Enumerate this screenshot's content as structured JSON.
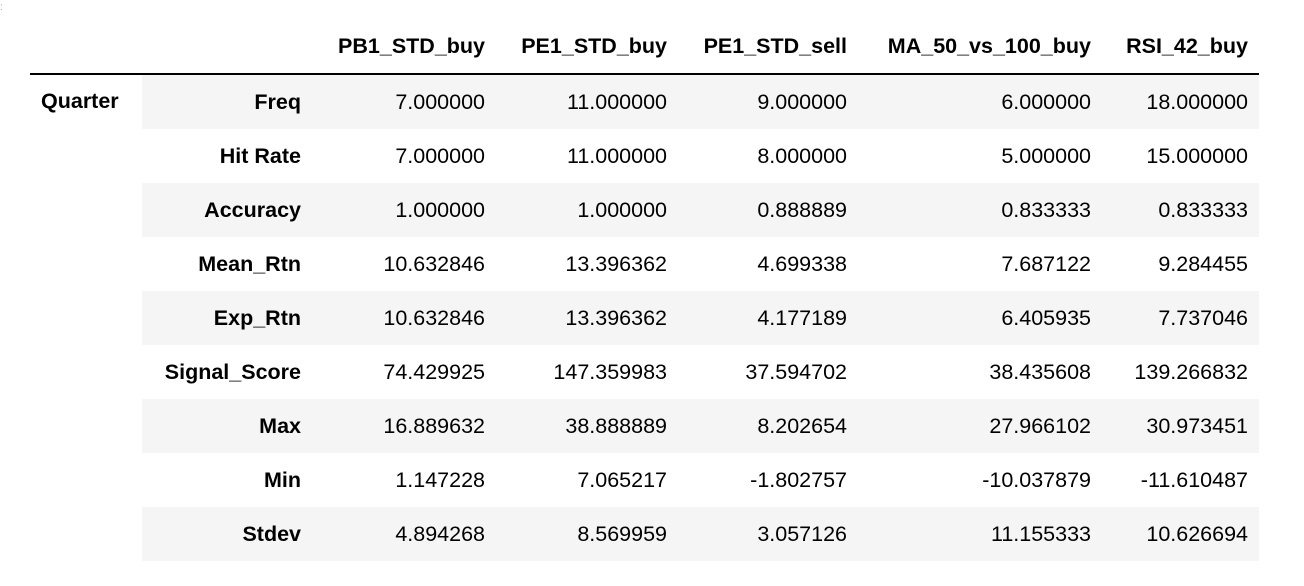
{
  "table": {
    "index_level0_header": "",
    "index_level1_header": "",
    "group_label": "Quarter",
    "columns": [
      "PB1_STD_buy",
      "PE1_STD_buy",
      "PE1_STD_sell",
      "MA_50_vs_100_buy",
      "RSI_42_buy"
    ],
    "rows": [
      {
        "label": "Freq",
        "values": [
          "7.000000",
          "11.000000",
          "9.000000",
          "6.000000",
          "18.000000"
        ]
      },
      {
        "label": "Hit Rate",
        "values": [
          "7.000000",
          "11.000000",
          "8.000000",
          "5.000000",
          "15.000000"
        ]
      },
      {
        "label": "Accuracy",
        "values": [
          "1.000000",
          "1.000000",
          "0.888889",
          "0.833333",
          "0.833333"
        ]
      },
      {
        "label": "Mean_Rtn",
        "values": [
          "10.632846",
          "13.396362",
          "4.699338",
          "7.687122",
          "9.284455"
        ]
      },
      {
        "label": "Exp_Rtn",
        "values": [
          "10.632846",
          "13.396362",
          "4.177189",
          "6.405935",
          "7.737046"
        ]
      },
      {
        "label": "Signal_Score",
        "values": [
          "74.429925",
          "147.359983",
          "37.594702",
          "38.435608",
          "139.266832"
        ]
      },
      {
        "label": "Max",
        "values": [
          "16.889632",
          "38.888889",
          "8.202654",
          "27.966102",
          "30.973451"
        ]
      },
      {
        "label": "Min",
        "values": [
          "1.147228",
          "7.065217",
          "-1.802757",
          "-10.037879",
          "-11.610487"
        ]
      },
      {
        "label": "Stdev",
        "values": [
          "4.894268",
          "8.569959",
          "3.057126",
          "11.155333",
          "10.626694"
        ]
      }
    ]
  },
  "colors": {
    "stripe": "#f5f5f5",
    "background": "#ffffff",
    "header_rule": "#000000"
  }
}
